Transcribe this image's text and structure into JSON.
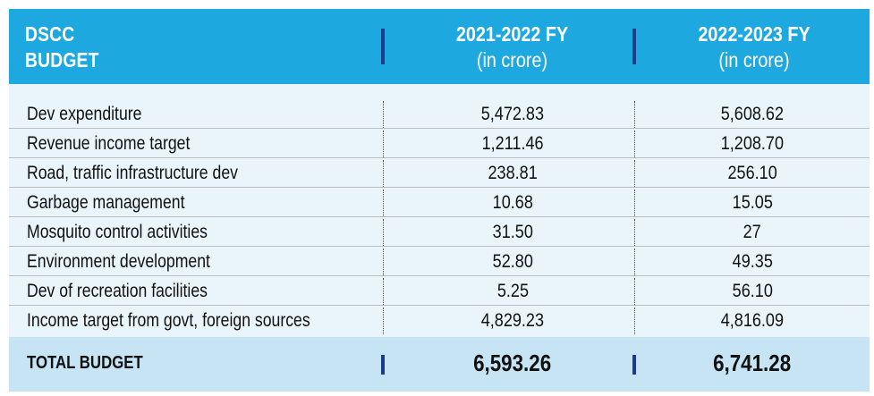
{
  "header": {
    "label_line1": "DSCC",
    "label_line2": "BUDGET",
    "col1_year": "2021-2022 FY",
    "col1_unit": "(in crore)",
    "col2_year": "2022-2023 FY",
    "col2_unit": "(in crore)"
  },
  "rows": [
    {
      "name": "Dev expenditure",
      "fy2122": "5,472.83",
      "fy2223": "5,608.62"
    },
    {
      "name": "Revenue income target",
      "fy2122": "1,211.46",
      "fy2223": "1,208.70"
    },
    {
      "name": "Road, traffic infrastructure dev",
      "fy2122": "238.81",
      "fy2223": "256.10"
    },
    {
      "name": "Garbage management",
      "fy2122": "10.68",
      "fy2223": "15.05"
    },
    {
      "name": "Mosquito control activities",
      "fy2122": "31.50",
      "fy2223": "27"
    },
    {
      "name": "Environment development",
      "fy2122": "52.80",
      "fy2223": "49.35"
    },
    {
      "name": "Dev of recreation facilities",
      "fy2122": "5.25",
      "fy2223": "56.10"
    },
    {
      "name": "Income target from govt, foreign sources",
      "fy2122": "4,829.23",
      "fy2223": "4,816.09"
    }
  ],
  "total": {
    "label": "TOTAL BUDGET",
    "fy2122": "6,593.26",
    "fy2223": "6,741.28"
  },
  "colors": {
    "header_bg": "#1ea8e0",
    "body_bg": "#eaf5fb",
    "total_bg": "#c6e4f4",
    "accent_bar": "#1b3b8c"
  }
}
